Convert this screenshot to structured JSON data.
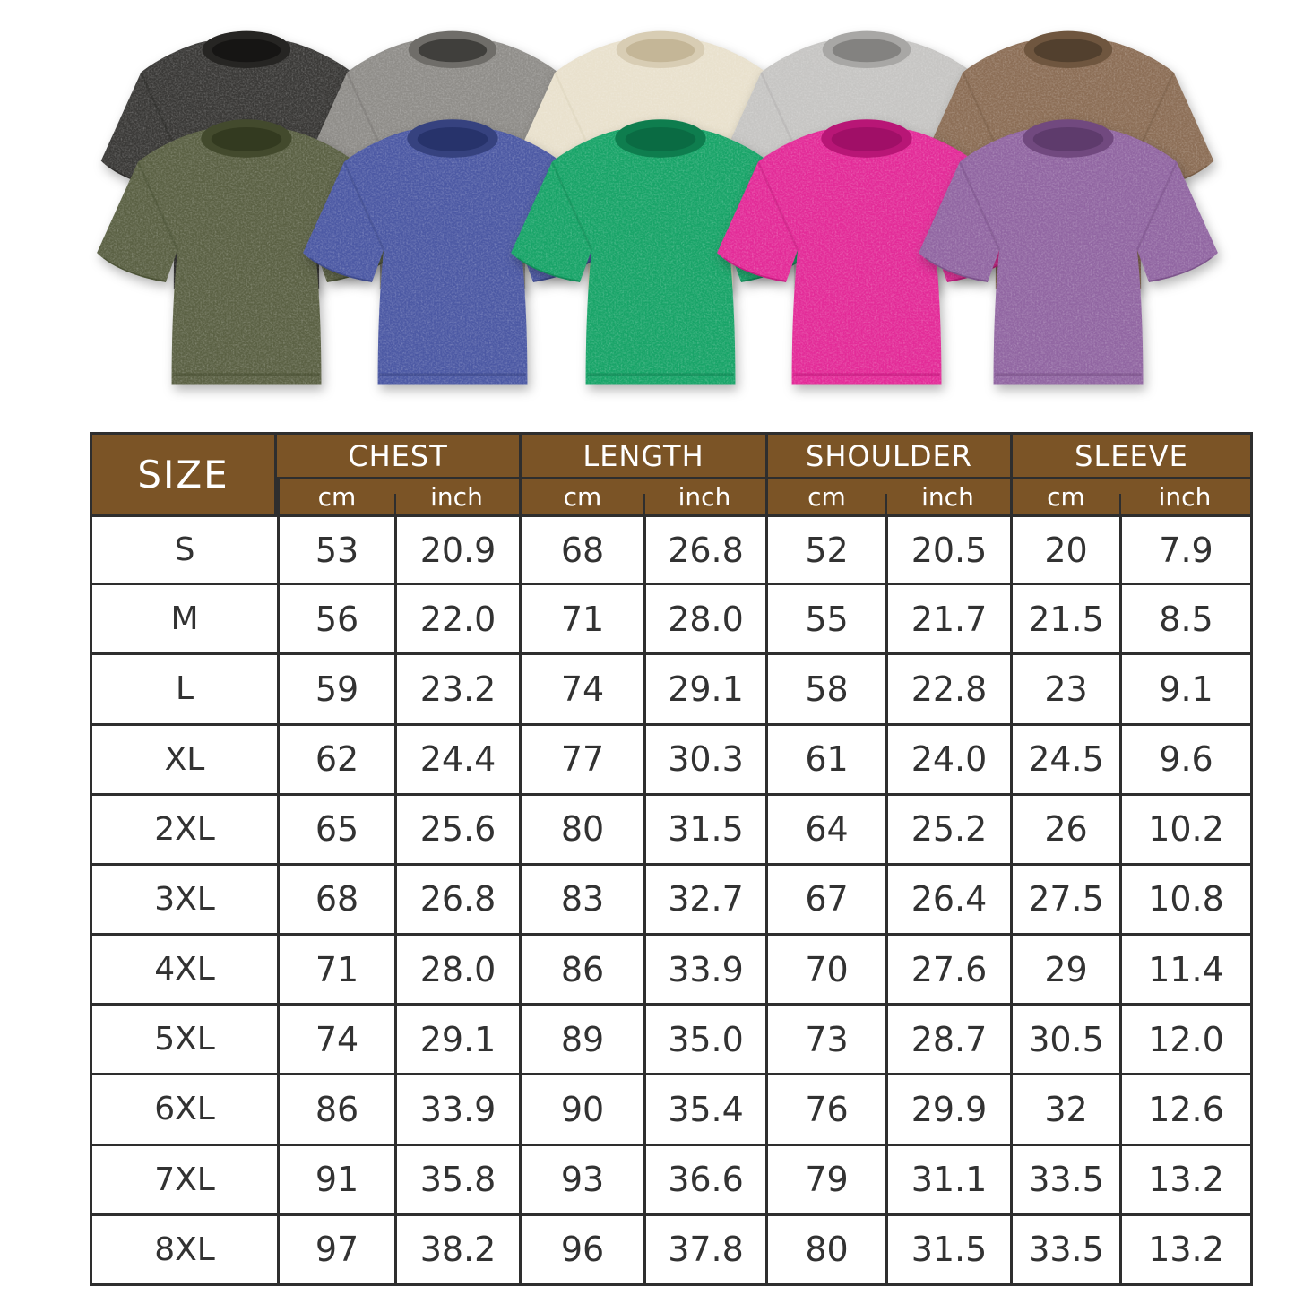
{
  "colors": {
    "background": "#ffffff",
    "header_bg": "#7b5426",
    "header_text": "#ffffff",
    "table_border": "#2e2e2e",
    "table_text": "#323232"
  },
  "shirts": {
    "back_row": [
      {
        "name": "washed-black",
        "body": "#3a3937",
        "trim": "#262523",
        "collar": "#161514"
      },
      {
        "name": "washed-gray",
        "body": "#8f8d89",
        "trim": "#6f6d69",
        "collar": "#403f3c"
      },
      {
        "name": "beige",
        "body": "#e9e1cd",
        "trim": "#d8cdb4",
        "collar": "#c4b697"
      },
      {
        "name": "light-gray",
        "body": "#c6c5c3",
        "trim": "#a8a7a5",
        "collar": "#838280"
      },
      {
        "name": "brown",
        "body": "#8c6e56",
        "trim": "#6f563f",
        "collar": "#52402e"
      }
    ],
    "front_row": [
      {
        "name": "army-green",
        "body": "#5b6144",
        "trim": "#434a2d",
        "collar": "#333a20"
      },
      {
        "name": "blue",
        "body": "#4c59a4",
        "trim": "#36427f",
        "collar": "#27336b"
      },
      {
        "name": "green",
        "body": "#18a468",
        "trim": "#0e7d4e",
        "collar": "#0a6b43"
      },
      {
        "name": "rose-pink",
        "body": "#e32b98",
        "trim": "#b81676",
        "collar": "#a00f67"
      },
      {
        "name": "purple",
        "body": "#9166a2",
        "trim": "#71497f",
        "collar": "#5e3b6c"
      }
    ]
  },
  "size_chart": {
    "size_header": "SIZE",
    "groups": [
      "CHEST",
      "LENGTH",
      "SHOULDER",
      "SLEEVE"
    ],
    "units": [
      "cm",
      "inch"
    ],
    "rows": [
      {
        "size": "S",
        "values": [
          "53",
          "20.9",
          "68",
          "26.8",
          "52",
          "20.5",
          "20",
          "7.9"
        ]
      },
      {
        "size": "M",
        "values": [
          "56",
          "22.0",
          "71",
          "28.0",
          "55",
          "21.7",
          "21.5",
          "8.5"
        ]
      },
      {
        "size": "L",
        "values": [
          "59",
          "23.2",
          "74",
          "29.1",
          "58",
          "22.8",
          "23",
          "9.1"
        ]
      },
      {
        "size": "XL",
        "values": [
          "62",
          "24.4",
          "77",
          "30.3",
          "61",
          "24.0",
          "24.5",
          "9.6"
        ]
      },
      {
        "size": "2XL",
        "values": [
          "65",
          "25.6",
          "80",
          "31.5",
          "64",
          "25.2",
          "26",
          "10.2"
        ]
      },
      {
        "size": "3XL",
        "values": [
          "68",
          "26.8",
          "83",
          "32.7",
          "67",
          "26.4",
          "27.5",
          "10.8"
        ]
      },
      {
        "size": "4XL",
        "values": [
          "71",
          "28.0",
          "86",
          "33.9",
          "70",
          "27.6",
          "29",
          "11.4"
        ]
      },
      {
        "size": "5XL",
        "values": [
          "74",
          "29.1",
          "89",
          "35.0",
          "73",
          "28.7",
          "30.5",
          "12.0"
        ]
      },
      {
        "size": "6XL",
        "values": [
          "86",
          "33.9",
          "90",
          "35.4",
          "76",
          "29.9",
          "32",
          "12.6"
        ]
      },
      {
        "size": "7XL",
        "values": [
          "91",
          "35.8",
          "93",
          "36.6",
          "79",
          "31.1",
          "33.5",
          "13.2"
        ]
      },
      {
        "size": "8XL",
        "values": [
          "97",
          "38.2",
          "96",
          "37.8",
          "80",
          "31.5",
          "33.5",
          "13.2"
        ]
      }
    ]
  },
  "chart_data": {
    "type": "table",
    "columns": [
      "SIZE",
      "CHEST cm",
      "CHEST inch",
      "LENGTH cm",
      "LENGTH inch",
      "SHOULDER cm",
      "SHOULDER inch",
      "SLEEVE cm",
      "SLEEVE inch"
    ],
    "rows": [
      [
        "S",
        53,
        20.9,
        68,
        26.8,
        52,
        20.5,
        20,
        7.9
      ],
      [
        "M",
        56,
        22.0,
        71,
        28.0,
        55,
        21.7,
        21.5,
        8.5
      ],
      [
        "L",
        59,
        23.2,
        74,
        29.1,
        58,
        22.8,
        23,
        9.1
      ],
      [
        "XL",
        62,
        24.4,
        77,
        30.3,
        61,
        24.0,
        24.5,
        9.6
      ],
      [
        "2XL",
        65,
        25.6,
        80,
        31.5,
        64,
        25.2,
        26,
        10.2
      ],
      [
        "3XL",
        68,
        26.8,
        83,
        32.7,
        67,
        26.4,
        27.5,
        10.8
      ],
      [
        "4XL",
        71,
        28.0,
        86,
        33.9,
        70,
        27.6,
        29,
        11.4
      ],
      [
        "5XL",
        74,
        29.1,
        89,
        35.0,
        73,
        28.7,
        30.5,
        12.0
      ],
      [
        "6XL",
        86,
        33.9,
        90,
        35.4,
        76,
        29.9,
        32,
        12.6
      ],
      [
        "7XL",
        91,
        35.8,
        93,
        36.6,
        79,
        31.1,
        33.5,
        13.2
      ],
      [
        "8XL",
        97,
        38.2,
        96,
        37.8,
        80,
        31.5,
        33.5,
        13.2
      ]
    ]
  }
}
